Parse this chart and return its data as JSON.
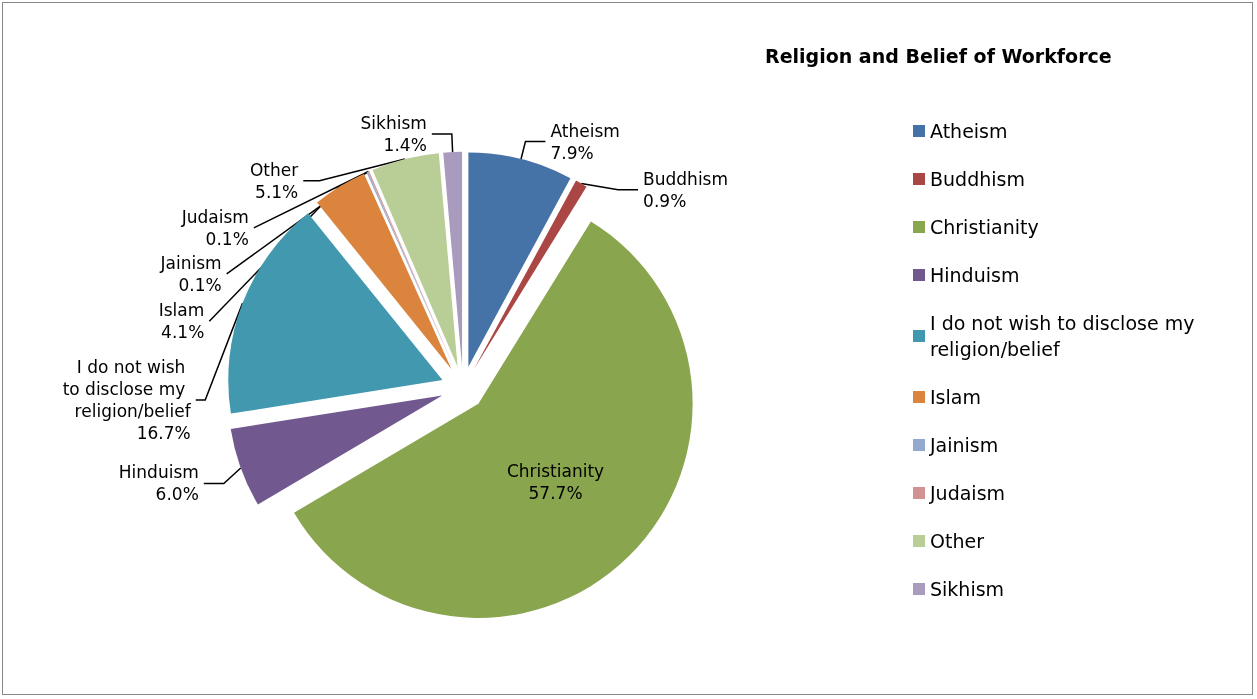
{
  "chart_data": {
    "type": "pie",
    "title": "Religion and Belief of Workforce",
    "categories": [
      "Atheism",
      "Buddhism",
      "Christianity",
      "Hinduism",
      "I do not wish to disclose my religion/belief",
      "Islam",
      "Jainism",
      "Judaism",
      "Other",
      "Sikhism"
    ],
    "values": [
      7.9,
      0.9,
      57.7,
      6.0,
      16.7,
      4.1,
      0.1,
      0.1,
      5.1,
      1.4
    ],
    "value_labels": [
      "7.9%",
      "0.9%",
      "57.7%",
      "6.0%",
      "16.7%",
      "4.1%",
      "0.1%",
      "0.1%",
      "5.1%",
      "1.4%"
    ],
    "colors": [
      "#4572a7",
      "#aa4643",
      "#89a54e",
      "#71588f",
      "#4198af",
      "#db843d",
      "#93a9cf",
      "#d19392",
      "#b9cd96",
      "#a99bbd"
    ],
    "legend": "right"
  }
}
